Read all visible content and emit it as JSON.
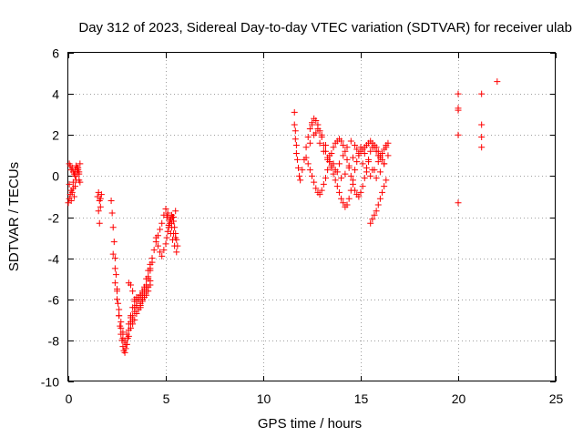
{
  "chart_data": {
    "type": "scatter",
    "title": "Day 312 of 2023, Sidereal Day-to-day VTEC variation (SDTVAR) for receiver ulab",
    "xlabel": "GPS time / hours",
    "ylabel": "SDTVAR / TECUs",
    "xlim": [
      0,
      25
    ],
    "ylim": [
      -10,
      6
    ],
    "xticks": [
      0,
      5,
      10,
      15,
      20,
      25
    ],
    "yticks": [
      -10,
      -8,
      -6,
      -4,
      -2,
      0,
      2,
      4,
      6
    ],
    "grid": true,
    "marker": "plus",
    "color": "#ff0000",
    "series": [
      {
        "name": "SDTVAR",
        "x": [
          0.0,
          0.05,
          0.1,
          0.15,
          0.2,
          0.25,
          0.3,
          0.35,
          0.4,
          0.45,
          0.5,
          0.55,
          0.6,
          0.05,
          0.1,
          0.15,
          0.2,
          0.25,
          0.3,
          0.35,
          0.4,
          0.45,
          0.5,
          0.55,
          0.6,
          0.05,
          0.15,
          0.25,
          0.35,
          0.45,
          0.55,
          1.5,
          1.55,
          1.6,
          1.65,
          1.7,
          1.55,
          1.6,
          1.65,
          2.2,
          2.25,
          2.3,
          2.35,
          2.4,
          2.45,
          2.5,
          2.55,
          2.6,
          2.65,
          2.7,
          2.75,
          2.8,
          2.85,
          2.9,
          2.95,
          3.0,
          3.05,
          3.1,
          3.2,
          3.3,
          3.4,
          3.5,
          3.6,
          3.7,
          3.8,
          3.9,
          4.0,
          4.1,
          4.2,
          4.3,
          4.4,
          4.5,
          4.6,
          4.7,
          4.8,
          4.9,
          2.3,
          2.4,
          2.5,
          2.6,
          2.7,
          2.8,
          2.9,
          3.0,
          3.1,
          3.2,
          3.3,
          3.4,
          3.5,
          3.6,
          3.7,
          3.8,
          3.9,
          4.0,
          4.1,
          4.2,
          4.3,
          2.4,
          2.5,
          2.6,
          2.7,
          2.8,
          2.9,
          3.0,
          3.1,
          3.2,
          3.3,
          3.4,
          3.5,
          3.6,
          3.7,
          3.8,
          3.9,
          4.0,
          4.1,
          4.2,
          3.1,
          3.2,
          3.3,
          3.4,
          3.5,
          3.6,
          3.7,
          3.8,
          3.9,
          4.0,
          4.1,
          4.2,
          3.2,
          3.3,
          3.4,
          3.5,
          3.6,
          3.7,
          3.8,
          3.9,
          4.0,
          4.1,
          4.2,
          4.5,
          4.6,
          4.7,
          4.8,
          4.9,
          5.0,
          5.05,
          5.1,
          5.15,
          5.2,
          5.25,
          5.3,
          5.35,
          5.4,
          5.45,
          5.5,
          5.55,
          5.6,
          5.0,
          5.1,
          5.2,
          5.3,
          5.4,
          5.5,
          5.05,
          5.15,
          5.25,
          5.35,
          5.45,
          5.55,
          5.1,
          5.2,
          5.3,
          5.4,
          5.5,
          11.6,
          11.6,
          11.65,
          11.65,
          11.7,
          11.7,
          11.75,
          11.8,
          11.85,
          11.9,
          12.0,
          12.1,
          12.2,
          12.3,
          12.4,
          12.5,
          12.6,
          12.7,
          12.8,
          12.9,
          13.0,
          13.1,
          13.2,
          13.3,
          13.4,
          13.5,
          13.6,
          13.7,
          13.8,
          13.9,
          14.0,
          14.1,
          14.2,
          14.3,
          14.4,
          14.5,
          14.6,
          14.7,
          14.8,
          14.9,
          15.0,
          15.1,
          15.2,
          15.3,
          15.4,
          15.5,
          15.6,
          15.7,
          15.8,
          15.9,
          16.0,
          16.1,
          16.2,
          16.3,
          16.4,
          12.2,
          12.3,
          12.4,
          12.5,
          12.6,
          12.7,
          12.8,
          12.9,
          13.0,
          13.1,
          13.2,
          13.3,
          13.4,
          13.5,
          13.6,
          13.7,
          13.8,
          13.9,
          14.0,
          14.1,
          14.2,
          14.3,
          14.4,
          14.5,
          14.6,
          14.7,
          14.8,
          14.9,
          15.0,
          15.1,
          15.2,
          15.3,
          15.4,
          15.5,
          15.6,
          15.7,
          15.8,
          15.9,
          16.0,
          16.1,
          16.2,
          12.4,
          12.6,
          12.8,
          13.0,
          13.2,
          13.4,
          13.6,
          13.8,
          14.0,
          14.2,
          14.4,
          14.6,
          14.8,
          15.0,
          15.2,
          15.4,
          15.6,
          15.8,
          16.0,
          16.2,
          16.4,
          12.5,
          12.7,
          12.9,
          13.1,
          13.3,
          13.5,
          13.7,
          13.9,
          14.1,
          14.3,
          14.5,
          14.7,
          14.9,
          15.1,
          15.3,
          15.5,
          15.7,
          15.9,
          16.1,
          16.3,
          15.5,
          15.6,
          15.7,
          15.8,
          15.9,
          16.0,
          16.1,
          16.2,
          16.3,
          20.0,
          20.0,
          20.0,
          20.0,
          20.0,
          21.2,
          21.2,
          21.2,
          21.2,
          22.0
        ],
        "y": [
          -1.3,
          -1.1,
          -0.9,
          -1.2,
          -0.8,
          -0.6,
          -1.0,
          -0.5,
          -0.2,
          0.2,
          0.4,
          0.1,
          -0.3,
          0.6,
          0.5,
          0.3,
          0.4,
          0.2,
          0.1,
          0.3,
          0.5,
          0.4,
          0.3,
          0.2,
          0.6,
          -0.4,
          -0.7,
          -0.3,
          0.0,
          0.1,
          -0.2,
          -1.0,
          -0.8,
          -1.2,
          -1.5,
          -0.9,
          -1.7,
          -2.3,
          -1.1,
          -1.2,
          -1.8,
          -2.5,
          -3.2,
          -4.0,
          -4.8,
          -5.5,
          -6.2,
          -6.8,
          -7.3,
          -7.7,
          -8.0,
          -8.3,
          -8.5,
          -8.6,
          -8.4,
          -8.2,
          -7.9,
          -7.5,
          -7.1,
          -6.8,
          -6.4,
          -6.1,
          -5.9,
          -5.8,
          -5.6,
          -5.4,
          -5.0,
          -4.6,
          -4.3,
          -4.0,
          -3.6,
          -3.2,
          -2.9,
          -2.6,
          -2.3,
          -1.9,
          -3.8,
          -4.5,
          -5.6,
          -6.5,
          -7.1,
          -7.6,
          -8.0,
          -8.2,
          -7.8,
          -7.4,
          -7.0,
          -6.6,
          -6.3,
          -6.0,
          -5.8,
          -5.7,
          -5.5,
          -5.3,
          -4.9,
          -4.5,
          -4.2,
          -5.2,
          -6.0,
          -6.8,
          -7.4,
          -7.9,
          -8.1,
          -7.7,
          -7.2,
          -6.8,
          -6.4,
          -6.1,
          -5.9,
          -6.0,
          -6.2,
          -6.0,
          -5.7,
          -5.4,
          -5.0,
          -4.6,
          -5.2,
          -5.3,
          -5.6,
          -6.0,
          -6.3,
          -6.5,
          -6.4,
          -6.1,
          -5.9,
          -5.8,
          -5.6,
          -5.3,
          -6.9,
          -7.2,
          -7.0,
          -6.7,
          -6.5,
          -6.3,
          -6.0,
          -5.8,
          -5.6,
          -5.4,
          -5.1,
          -3.0,
          -3.4,
          -3.7,
          -3.9,
          -3.6,
          -3.3,
          -3.0,
          -2.7,
          -2.5,
          -2.3,
          -2.1,
          -1.9,
          -2.0,
          -2.2,
          -2.5,
          -2.8,
          -3.1,
          -3.4,
          -1.6,
          -1.9,
          -2.2,
          -2.5,
          -2.8,
          -3.0,
          -2.0,
          -2.4,
          -2.8,
          -3.1,
          -3.4,
          -3.7,
          -1.8,
          -2.1,
          -2.3,
          -2.0,
          -1.7,
          3.1,
          2.5,
          2.2,
          1.8,
          1.5,
          1.1,
          0.8,
          0.4,
          0.0,
          -0.2,
          0.3,
          0.8,
          1.4,
          1.9,
          2.3,
          2.6,
          2.8,
          2.7,
          2.5,
          2.2,
          1.9,
          1.5,
          1.2,
          0.9,
          0.7,
          0.4,
          0.1,
          -0.2,
          -0.5,
          -0.8,
          -1.1,
          -1.3,
          -1.5,
          -1.4,
          -1.1,
          -0.7,
          -0.2,
          0.3,
          0.7,
          1.0,
          1.2,
          1.3,
          1.4,
          1.5,
          1.6,
          1.7,
          1.6,
          1.4,
          1.2,
          1.0,
          0.9,
          1.1,
          1.3,
          1.5,
          1.6,
          0.9,
          0.6,
          0.3,
          0.0,
          -0.3,
          -0.6,
          -0.8,
          -0.9,
          -0.7,
          -0.4,
          -0.1,
          0.3,
          0.7,
          1.1,
          1.4,
          1.6,
          1.7,
          1.8,
          1.7,
          1.5,
          1.2,
          0.8,
          0.4,
          0.0,
          -0.4,
          -0.7,
          -0.9,
          -1.0,
          -0.8,
          -0.5,
          -0.1,
          0.4,
          0.8,
          1.2,
          1.4,
          1.5,
          1.4,
          1.2,
          1.0,
          0.8,
          0.6,
          1.6,
          2.0,
          2.3,
          2.0,
          1.5,
          1.0,
          0.6,
          0.2,
          -0.1,
          0.1,
          0.5,
          0.9,
          1.3,
          1.4,
          1.1,
          0.7,
          0.3,
          -0.1,
          0.2,
          0.6,
          1.0,
          2.5,
          2.1,
          1.6,
          1.2,
          0.8,
          0.5,
          0.3,
          0.6,
          1.0,
          1.4,
          1.7,
          1.5,
          1.1,
          0.6,
          0.2,
          0.0,
          0.3,
          0.7,
          1.1,
          1.4,
          -2.3,
          -2.1,
          -1.9,
          -1.7,
          -1.4,
          -1.1,
          -0.8,
          -0.5,
          -0.2,
          4.0,
          3.2,
          2.0,
          -1.3,
          3.3,
          4.0,
          2.5,
          1.9,
          1.4,
          4.6
        ]
      }
    ]
  }
}
